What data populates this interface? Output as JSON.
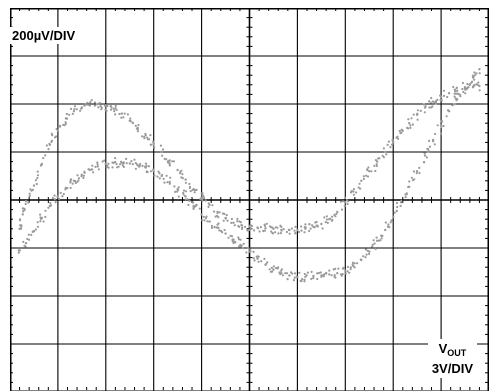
{
  "chart_data": {
    "type": "scatter",
    "title": "",
    "vertical_scale_label": "200µV/DIV",
    "horizontal_label_main": "V",
    "horizontal_label_sub": "OUT",
    "horizontal_scale_label": "3V/DIV",
    "divisions": {
      "x": 10,
      "y": 8
    },
    "xlim": [
      -15,
      15
    ],
    "ylim": [
      -800,
      800
    ],
    "xlabel_unit": "V",
    "ylabel_unit": "µV",
    "grid": true,
    "series": [
      {
        "points": [
          [
            -14.4,
            -120
          ],
          [
            -14.2,
            -60
          ],
          [
            -14.0,
            -5
          ],
          [
            -13.5,
            60
          ],
          [
            -13.0,
            150
          ],
          [
            -12.5,
            230
          ],
          [
            -12.0,
            290
          ],
          [
            -11.5,
            340
          ],
          [
            -11.0,
            370
          ],
          [
            -10.5,
            385
          ],
          [
            -10.0,
            395
          ],
          [
            -9.5,
            400
          ],
          [
            -9.0,
            395
          ],
          [
            -8.5,
            380
          ],
          [
            -8.0,
            360
          ],
          [
            -7.5,
            330
          ],
          [
            -7.0,
            300
          ],
          [
            -6.5,
            270
          ],
          [
            -6.0,
            235
          ],
          [
            -5.5,
            200
          ],
          [
            -5.0,
            165
          ],
          [
            -4.5,
            125
          ],
          [
            -4.0,
            85
          ],
          [
            -3.5,
            45
          ],
          [
            -3.0,
            10
          ],
          [
            -2.5,
            -20
          ],
          [
            -2.0,
            -50
          ],
          [
            -1.5,
            -75
          ],
          [
            -1.0,
            -95
          ],
          [
            -0.5,
            -105
          ],
          [
            0.0,
            -110
          ],
          [
            0.5,
            -115
          ],
          [
            1.0,
            -118
          ],
          [
            1.5,
            -120
          ],
          [
            2.0,
            -125
          ],
          [
            2.5,
            -125
          ],
          [
            3.0,
            -125
          ],
          [
            3.5,
            -120
          ],
          [
            4.0,
            -112
          ],
          [
            4.5,
            -100
          ],
          [
            5.0,
            -80
          ],
          [
            5.5,
            -50
          ],
          [
            6.0,
            -10
          ],
          [
            6.5,
            35
          ],
          [
            7.0,
            80
          ],
          [
            7.5,
            120
          ],
          [
            8.0,
            160
          ],
          [
            8.5,
            200
          ],
          [
            9.0,
            240
          ],
          [
            9.5,
            280
          ],
          [
            10.0,
            320
          ],
          [
            10.5,
            355
          ],
          [
            11.0,
            385
          ],
          [
            11.5,
            410
          ],
          [
            12.0,
            430
          ],
          [
            12.5,
            445
          ],
          [
            13.0,
            455
          ],
          [
            13.5,
            465
          ],
          [
            14.0,
            470
          ],
          [
            14.4,
            475
          ]
        ]
      },
      {
        "points": [
          [
            14.4,
            545
          ],
          [
            14.0,
            510
          ],
          [
            13.5,
            470
          ],
          [
            13.0,
            420
          ],
          [
            12.5,
            370
          ],
          [
            12.0,
            310
          ],
          [
            11.5,
            250
          ],
          [
            11.0,
            185
          ],
          [
            10.5,
            120
          ],
          [
            10.0,
            55
          ],
          [
            9.5,
            -10
          ],
          [
            9.0,
            -70
          ],
          [
            8.5,
            -125
          ],
          [
            8.0,
            -170
          ],
          [
            7.5,
            -215
          ],
          [
            7.0,
            -250
          ],
          [
            6.5,
            -275
          ],
          [
            6.0,
            -295
          ],
          [
            5.5,
            -305
          ],
          [
            5.0,
            -310
          ],
          [
            4.5,
            -315
          ],
          [
            4.0,
            -318
          ],
          [
            3.5,
            -320
          ],
          [
            3.0,
            -320
          ],
          [
            2.5,
            -315
          ],
          [
            2.0,
            -305
          ],
          [
            1.5,
            -290
          ],
          [
            1.0,
            -270
          ],
          [
            0.5,
            -245
          ],
          [
            0.0,
            -215
          ],
          [
            -0.5,
            -190
          ],
          [
            -1.0,
            -165
          ],
          [
            -1.5,
            -140
          ],
          [
            -2.0,
            -115
          ],
          [
            -2.5,
            -90
          ],
          [
            -3.0,
            -60
          ],
          [
            -3.5,
            -25
          ],
          [
            -4.0,
            15
          ],
          [
            -4.5,
            45
          ],
          [
            -5.0,
            75
          ],
          [
            -5.5,
            100
          ],
          [
            -6.0,
            120
          ],
          [
            -6.5,
            135
          ],
          [
            -7.0,
            145
          ],
          [
            -7.5,
            152
          ],
          [
            -8.0,
            155
          ],
          [
            -8.5,
            155
          ],
          [
            -9.0,
            150
          ],
          [
            -9.5,
            140
          ],
          [
            -10.0,
            125
          ],
          [
            -10.5,
            105
          ],
          [
            -11.0,
            80
          ],
          [
            -11.5,
            50
          ],
          [
            -12.0,
            15
          ],
          [
            -12.5,
            -25
          ],
          [
            -13.0,
            -75
          ],
          [
            -13.5,
            -130
          ],
          [
            -14.0,
            -180
          ],
          [
            -14.4,
            -210
          ]
        ]
      }
    ]
  },
  "colors": {
    "background": "#ffffff",
    "grid": "#000000",
    "trace": "#9a9a9a"
  }
}
